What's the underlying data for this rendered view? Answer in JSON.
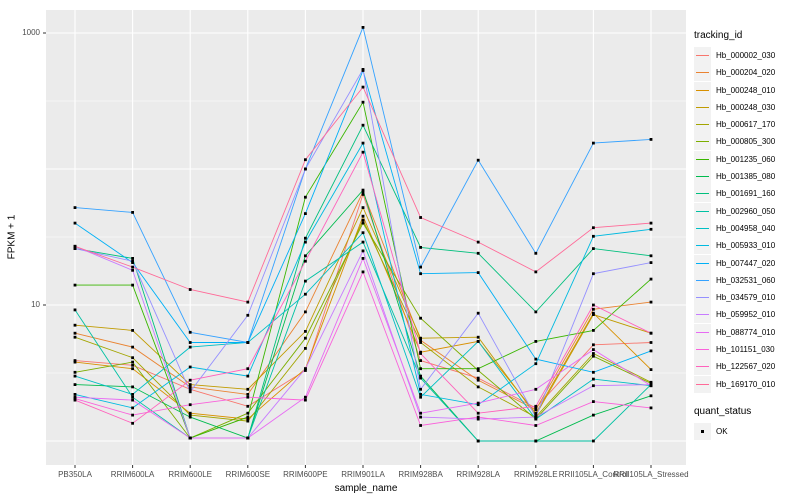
{
  "chart_data": {
    "type": "line",
    "title": "",
    "xlabel": "sample_name",
    "ylabel": "FPKM + 1",
    "log_y": true,
    "grid": "on",
    "legend_position": "right",
    "y_axis": {
      "tick_labels": [
        "1000",
        "10"
      ],
      "tick_values": [
        1000,
        10
      ],
      "major_gridlines": [
        1,
        10,
        100,
        1000
      ],
      "minor_gridlines": [
        3.162,
        31.62,
        316.2
      ],
      "range": [
        0.95,
        1300
      ]
    },
    "categories": [
      "PB350LA",
      "RRIM600LA",
      "RRIM600LE",
      "RRIM600SE",
      "RRIM600PE",
      "RRIM901LA",
      "RRIM928BA",
      "RRIM928LA",
      "RRIM928LE",
      "RRII105LA_Control",
      "RRII105LA_Stressed"
    ],
    "series": [
      {
        "name": "Hb_000002_030",
        "color": "#F8766D",
        "values": [
          3.9,
          3.6,
          2.4,
          1.8,
          3.3,
          65,
          3.9,
          2.9,
          1.75,
          5.1,
          5.3
        ]
      },
      {
        "name": "Hb_000204_020",
        "color": "#EA8331",
        "values": [
          6.2,
          4.9,
          2.5,
          2.2,
          8.9,
          68,
          5.5,
          2.8,
          1.7,
          9.3,
          10.5
        ]
      },
      {
        "name": "Hb_000248_010",
        "color": "#D89000",
        "values": [
          3.8,
          3.4,
          1.6,
          1.45,
          3.4,
          45,
          4.5,
          5.4,
          1.6,
          8.7,
          3.35
        ]
      },
      {
        "name": "Hb_000248_030",
        "color": "#C09B00",
        "values": [
          7.1,
          6.5,
          2.6,
          2.4,
          6.4,
          52,
          5.7,
          5.8,
          1.55,
          8.5,
          6.2
        ]
      },
      {
        "name": "Hb_000617_170",
        "color": "#A3A500",
        "values": [
          5.8,
          4.1,
          1.55,
          1.4,
          4.8,
          42,
          5.3,
          2.5,
          1.5,
          4.4,
          2.7
        ]
      },
      {
        "name": "Hb_000805_300",
        "color": "#7CAE00",
        "values": [
          3.2,
          3.8,
          1.05,
          1.6,
          5.7,
          40,
          8.0,
          3.3,
          1.45,
          4.2,
          2.65
        ]
      },
      {
        "name": "Hb_001235_060",
        "color": "#39B600",
        "values": [
          14,
          14,
          1.05,
          1.5,
          62,
          310,
          3.4,
          3.4,
          5.4,
          6.5,
          15.5
        ]
      },
      {
        "name": "Hb_001385_080",
        "color": "#00BB4E",
        "values": [
          2.6,
          2.5,
          1.5,
          1.05,
          23,
          70,
          3.0,
          1.0,
          1.0,
          1.55,
          2.15
        ]
      },
      {
        "name": "Hb_001691_160",
        "color": "#00BF7D",
        "values": [
          26,
          22,
          1.05,
          1.05,
          31,
          210,
          26.5,
          24,
          8.9,
          26,
          23
        ]
      },
      {
        "name": "Hb_002960_050",
        "color": "#00C1A3",
        "values": [
          9.2,
          2.1,
          1.05,
          1.05,
          15,
          29,
          2.9,
          1.0,
          1.0,
          1.0,
          2.6
        ]
      },
      {
        "name": "Hb_004958_040",
        "color": "#00BFC4",
        "values": [
          3.0,
          2.2,
          4.9,
          5.3,
          12,
          34,
          2.1,
          5.4,
          1.45,
          2.85,
          2.55
        ]
      },
      {
        "name": "Hb_005933_010",
        "color": "#00BAE0",
        "values": [
          2.2,
          1.75,
          3.5,
          3.0,
          29,
          155,
          2.2,
          1.85,
          3.7,
          32,
          36
        ]
      },
      {
        "name": "Hb_007447_020",
        "color": "#00B0F6",
        "values": [
          40,
          20.5,
          5.3,
          5.3,
          47,
          530,
          17,
          17.3,
          4.0,
          3.2,
          4.6
        ]
      },
      {
        "name": "Hb_032531_060",
        "color": "#35A2FF",
        "values": [
          52,
          48,
          6.3,
          5.3,
          100,
          1100,
          19,
          116,
          24,
          155,
          165
        ]
      },
      {
        "name": "Hb_034579_010",
        "color": "#9590FF",
        "values": [
          26,
          21,
          2.3,
          8.4,
          100,
          540,
          2.4,
          8.7,
          1.5,
          17,
          20.5
        ]
      },
      {
        "name": "Hb_059952_010",
        "color": "#C77CFF",
        "values": [
          27,
          18,
          1.05,
          1.05,
          3.4,
          25,
          1.5,
          1.45,
          1.5,
          2.55,
          2.6
        ]
      },
      {
        "name": "Hb_088774_010",
        "color": "#E76BF3",
        "values": [
          2.1,
          2.0,
          1.05,
          1.05,
          2.1,
          22,
          1.6,
          1.9,
          2.4,
          4.7,
          2.55
        ]
      },
      {
        "name": "Hb_101151_030",
        "color": "#FA62DB",
        "values": [
          2.05,
          1.55,
          1.85,
          2.1,
          2.0,
          17.5,
          1.3,
          1.5,
          1.3,
          1.95,
          1.75
        ]
      },
      {
        "name": "Hb_122567_020",
        "color": "#FF62BC",
        "values": [
          2.0,
          1.35,
          2.8,
          3.4,
          21,
          133,
          4.4,
          1.6,
          1.8,
          10,
          6.2
        ]
      },
      {
        "name": "Hb_169170_010",
        "color": "#FF6A98",
        "values": [
          27,
          19,
          13,
          10.5,
          117,
          400,
          44,
          29,
          17.5,
          37,
          40
        ]
      }
    ]
  },
  "legend": {
    "tracking_title": "tracking_id",
    "quant_title": "quant_status",
    "quant_items": [
      {
        "label": "OK",
        "marker": "point-black"
      }
    ]
  },
  "colors": {
    "panel_background": "#EBEBEB",
    "gridline": "#FFFFFF",
    "legend_key_background": "#F2F2F2",
    "tick_text": "#4D4D4D",
    "point": "#000000"
  }
}
